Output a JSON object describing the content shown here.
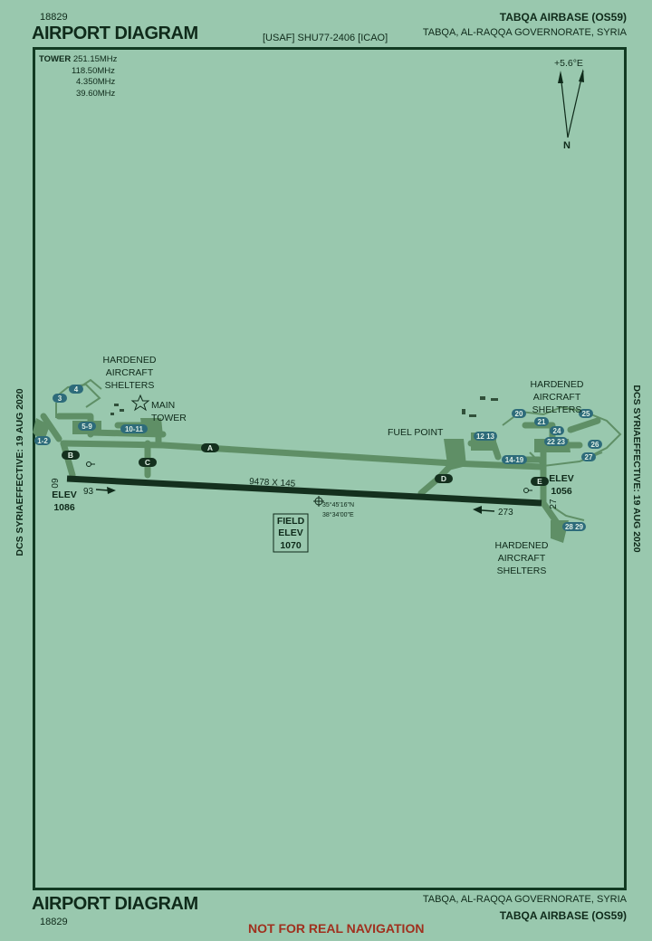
{
  "header": {
    "chart_number": "18829",
    "title": "AIRPORT DIAGRAM",
    "identifier": "[USAF] SHU77-2406 [ICAO]",
    "airport": "TABQA AIRBASE (OS59)",
    "location": "TABQA,  AL-RAQQA GOVERNORATE,  SYRIA"
  },
  "footer": {
    "title": "AIRPORT DIAGRAM",
    "chart_number": "18829",
    "location": "TABQA,  AL-RAQQA GOVERNORATE,  SYRIA",
    "airport": "TABQA AIRBASE (OS59)",
    "disclaimer": "NOT FOR REAL NAVIGATION"
  },
  "margins": {
    "left": "DCS SYRIAEFFECTIVE: 19 AUG 2020",
    "right": "DCS SYRIAEFFECTIVE: 19 AUG 2020"
  },
  "frequencies": {
    "label": "TOWER",
    "values": [
      "251.15MHz",
      "118.50MHz",
      "4.350MHz",
      "39.60MHz"
    ]
  },
  "north_arrow": {
    "variation": "+5.6°E",
    "north_label": "N"
  },
  "runway": {
    "dimensions": "9478  X 145",
    "end_west": "09",
    "end_east": "27",
    "heading_west": "93",
    "heading_east": "273"
  },
  "elevations": {
    "west_label": "ELEV",
    "west_value": "1086",
    "east_label": "ELEV",
    "east_value": "1056",
    "field_line1": "FIELD",
    "field_line2": "ELEV",
    "field_value": "1070"
  },
  "coordinates": {
    "lat": "35°45'16\"N",
    "lon": "38°34'00\"E"
  },
  "taxiways": [
    "A",
    "B",
    "C",
    "D",
    "E"
  ],
  "labels": {
    "has_west_1": "HARDENED",
    "has_west_2": "AIRCRAFT",
    "has_west_3": "SHELTERS",
    "main_tower_1": "MAIN",
    "main_tower_2": "TOWER",
    "fuel_point": "FUEL POINT",
    "has_east_1": "HARDENED",
    "has_east_2": "AIRCRAFT",
    "has_east_3": "SHELTERS",
    "has_se_1": "HARDENED",
    "has_se_2": "AIRCRAFT",
    "has_se_3": "SHELTERS"
  },
  "parking": {
    "p1_2": "1-2",
    "p3": "3",
    "p4": "4",
    "p5_9": "5-9",
    "p10_11": "10-11",
    "p12_13": "12 13",
    "p14_19": "14-19",
    "p20": "20",
    "p21": "21",
    "p22_23": "22 23",
    "p24": "24",
    "p25": "25",
    "p26": "26",
    "p27": "27",
    "p28_29": "28 29"
  }
}
